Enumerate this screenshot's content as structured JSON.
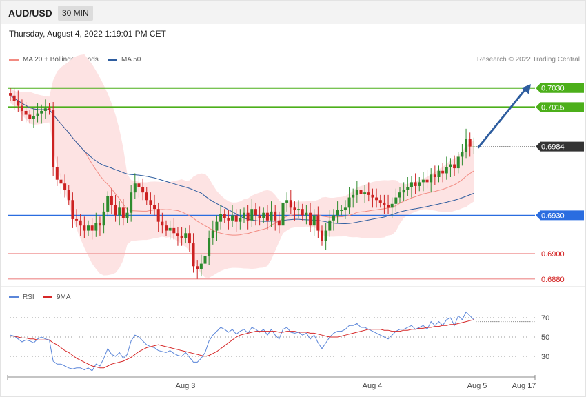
{
  "header": {
    "pair": "AUD/USD",
    "timeframe": "30 MIN"
  },
  "timestamp": "Thursday, August 4, 2022 1:19:01 PM CET",
  "legend_main": [
    {
      "label": "MA 20 + Bollinger Bands",
      "color": "#f28b82"
    },
    {
      "label": "MA 50",
      "color": "#2e5d9f"
    }
  ],
  "legend_rsi": [
    {
      "label": "RSI",
      "color": "#5b86d9"
    },
    {
      "label": "9MA",
      "color": "#d62828"
    }
  ],
  "copyright": "Research © 2022 Trading Central",
  "colors": {
    "bull": "#2e8b2e",
    "bear": "#cc2222",
    "resistance": "#4caf1a",
    "pivot": "#2a6de0",
    "support": "#f2a6a6",
    "support_text": "#d21c1c",
    "current": "#333333",
    "band_fill": "#fde3e3",
    "arrow": "#2e5d9f"
  },
  "chart_data": [
    {
      "type": "candlestick",
      "title": "",
      "ylim": [
        0.6875,
        0.7045
      ],
      "x_ticks": [
        "Aug 3",
        "Aug 4",
        "Aug 5",
        "Aug 17"
      ],
      "levels": [
        {
          "value": 0.703,
          "label": "0.7030",
          "role": "resistance"
        },
        {
          "value": 0.7015,
          "label": "0.7015",
          "role": "resistance"
        },
        {
          "value": 0.6984,
          "label": "0.6984",
          "role": "current"
        },
        {
          "value": 0.693,
          "label": "0.6930",
          "role": "pivot"
        },
        {
          "value": 0.69,
          "label": "0.6900",
          "role": "support"
        },
        {
          "value": 0.688,
          "label": "0.6880",
          "role": "support"
        }
      ],
      "closes": [
        0.7024,
        0.702,
        0.7016,
        0.7012,
        0.7009,
        0.7006,
        0.7008,
        0.701,
        0.7012,
        0.7014,
        0.7013,
        0.6968,
        0.6958,
        0.6955,
        0.695,
        0.6942,
        0.6927,
        0.6926,
        0.6922,
        0.6918,
        0.6922,
        0.6918,
        0.6924,
        0.6922,
        0.6933,
        0.6945,
        0.6938,
        0.693,
        0.6936,
        0.6928,
        0.6932,
        0.6948,
        0.6955,
        0.6952,
        0.6948,
        0.6942,
        0.6938,
        0.6935,
        0.6925,
        0.6922,
        0.6918,
        0.692,
        0.6916,
        0.6914,
        0.6912,
        0.6916,
        0.6908,
        0.689,
        0.6888,
        0.6892,
        0.6898,
        0.6912,
        0.6918,
        0.6925,
        0.6931,
        0.6928,
        0.6926,
        0.693,
        0.6925,
        0.6928,
        0.6932,
        0.6926,
        0.6935,
        0.693,
        0.6928,
        0.6932,
        0.6926,
        0.6933,
        0.6926,
        0.6922,
        0.694,
        0.6942,
        0.6936,
        0.6934,
        0.6935,
        0.693,
        0.6932,
        0.6922,
        0.693,
        0.6918,
        0.691,
        0.6918,
        0.6926,
        0.693,
        0.6934,
        0.6934,
        0.6936,
        0.6944,
        0.6946,
        0.695,
        0.6947,
        0.6948,
        0.6946,
        0.6944,
        0.6942,
        0.694,
        0.6938,
        0.6936,
        0.6939,
        0.6944,
        0.6948,
        0.695,
        0.6952,
        0.6956,
        0.6953,
        0.6956,
        0.6958,
        0.6956,
        0.6962,
        0.696,
        0.6965,
        0.6963,
        0.6968,
        0.697,
        0.6967,
        0.6976,
        0.698,
        0.699,
        0.6984,
        0.6984
      ],
      "y_unit": "AUD/USD",
      "forecast_arrow": {
        "from": 0.6983,
        "to": 0.7033
      }
    },
    {
      "type": "line",
      "title": "",
      "ylim": [
        10,
        85
      ],
      "y_ticks": [
        70,
        50,
        30
      ],
      "series": [
        {
          "name": "RSI",
          "values": [
            52,
            51,
            48,
            45,
            47,
            46,
            44,
            48,
            50,
            48,
            47,
            25,
            22,
            22,
            20,
            18,
            17,
            18,
            18,
            16,
            18,
            15,
            22,
            20,
            28,
            38,
            32,
            30,
            34,
            28,
            32,
            46,
            52,
            50,
            46,
            42,
            40,
            39,
            36,
            35,
            34,
            36,
            33,
            31,
            30,
            34,
            29,
            24,
            24,
            28,
            34,
            46,
            52,
            56,
            60,
            58,
            55,
            58,
            53,
            56,
            58,
            54,
            60,
            58,
            55,
            58,
            52,
            58,
            52,
            48,
            58,
            60,
            55,
            54,
            55,
            52,
            54,
            48,
            52,
            44,
            38,
            44,
            50,
            54,
            56,
            56,
            58,
            62,
            62,
            64,
            60,
            60,
            58,
            56,
            54,
            52,
            50,
            48,
            52,
            56,
            58,
            58,
            60,
            62,
            58,
            60,
            62,
            58,
            66,
            62,
            66,
            62,
            68,
            70,
            62,
            72,
            68,
            76,
            72,
            68
          ]
        },
        {
          "name": "9MA",
          "values": [
            51,
            51,
            50,
            49,
            49,
            48,
            48,
            47,
            47,
            47,
            47,
            44,
            42,
            39,
            36,
            34,
            31,
            28,
            26,
            24,
            22,
            20,
            19,
            18,
            18,
            20,
            22,
            23,
            24,
            25,
            27,
            29,
            32,
            35,
            37,
            39,
            40,
            41,
            42,
            41,
            40,
            39,
            38,
            37,
            36,
            35,
            34,
            33,
            32,
            31,
            30,
            31,
            33,
            35,
            38,
            41,
            44,
            47,
            50,
            52,
            53,
            54,
            55,
            56,
            56,
            56,
            56,
            56,
            56,
            55,
            55,
            56,
            56,
            56,
            55,
            55,
            55,
            54,
            54,
            53,
            52,
            51,
            50,
            50,
            50,
            51,
            52,
            53,
            54,
            55,
            56,
            57,
            58,
            58,
            58,
            58,
            57,
            57,
            56,
            56,
            56,
            57,
            57,
            58,
            58,
            59,
            59,
            60,
            60,
            61,
            61,
            62,
            62,
            63,
            63,
            64,
            65,
            66,
            67,
            68
          ]
        }
      ]
    }
  ]
}
